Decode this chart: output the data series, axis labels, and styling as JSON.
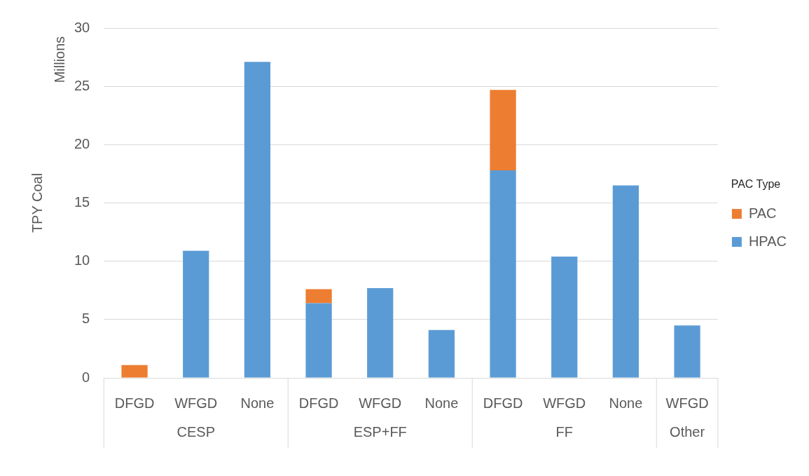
{
  "chart_data": {
    "type": "bar",
    "stacked": true,
    "ylabel": "TPY Coal",
    "legend_title": "PAC Type",
    "legend": "right",
    "grid": "y",
    "categories": [
      "DFGD",
      "WFGD",
      "None",
      "DFGD",
      "WFGD",
      "None",
      "DFGD",
      "WFGD",
      "None",
      "WFGD"
    ],
    "series": [
      {
        "name": "HPAC",
        "color": "#5b9bd5",
        "values": [
          0,
          10.9,
          27.1,
          6.4,
          7.7,
          4.1,
          17.8,
          10.4,
          16.5,
          4.5
        ]
      },
      {
        "name": "PAC",
        "color": "#ed7d31",
        "values": [
          1.1,
          0,
          0,
          1.2,
          0,
          0,
          6.9,
          0,
          0,
          0
        ]
      }
    ],
    "ylim": [
      0,
      30
    ],
    "yticks": [
      0,
      5,
      10,
      15,
      20,
      25,
      30
    ],
    "annotations": [
      "Millions",
      "CESP",
      "ESP+FF",
      "FF",
      "Other"
    ]
  }
}
